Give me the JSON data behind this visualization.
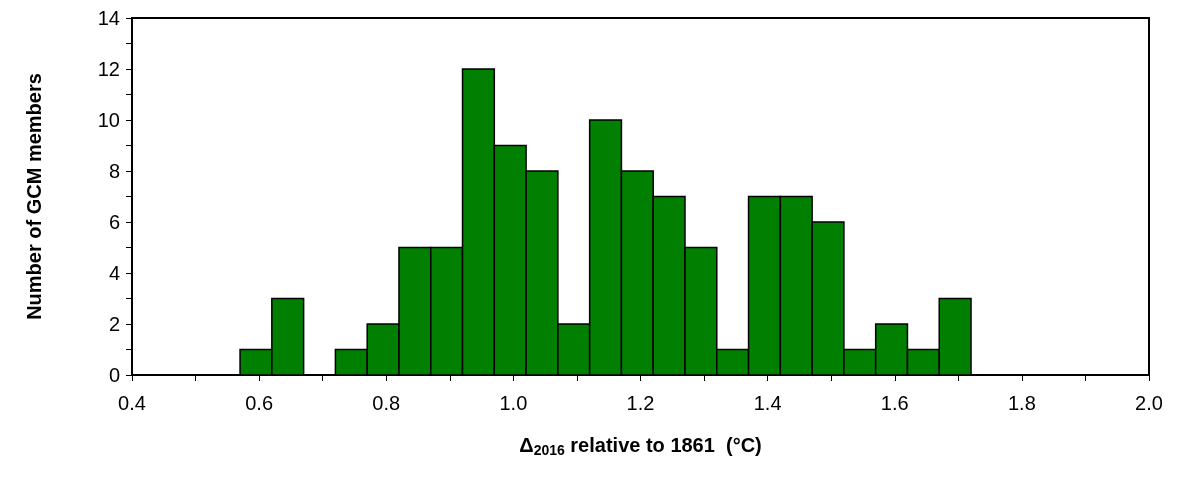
{
  "chart_data": {
    "type": "histogram",
    "xlabel": "Δ$_{2016}$ relative to 1861  (°C)",
    "ylabel": "Number of GCM members",
    "color": "#007f00",
    "bins": [
      0.57,
      0.62,
      0.67,
      0.72,
      0.77,
      0.82,
      0.87,
      0.92,
      0.97,
      1.02,
      1.07,
      1.12,
      1.17,
      1.22,
      1.27,
      1.32,
      1.37,
      1.42,
      1.47,
      1.52,
      1.57,
      1.62,
      1.67,
      1.72
    ],
    "values": [
      1,
      3,
      0,
      1,
      2,
      5,
      5,
      12,
      9,
      8,
      2,
      10,
      8,
      7,
      5,
      1,
      7,
      7,
      6,
      1,
      2,
      1,
      3
    ],
    "xlim": [
      0.4,
      2.0
    ],
    "xticks": [
      {
        "value": 0.4,
        "label": "0.4"
      },
      {
        "value": 0.5,
        "label": null
      },
      {
        "value": 0.6,
        "label": "0.6"
      },
      {
        "value": 0.7,
        "label": null
      },
      {
        "value": 0.8,
        "label": "0.8"
      },
      {
        "value": 0.9,
        "label": null
      },
      {
        "value": 1.0,
        "label": "1.0"
      },
      {
        "value": 1.1,
        "label": null
      },
      {
        "value": 1.2,
        "label": "1.2"
      },
      {
        "value": 1.3,
        "label": null
      },
      {
        "value": 1.4,
        "label": "1.4"
      },
      {
        "value": 1.5,
        "label": null
      },
      {
        "value": 1.6,
        "label": "1.6"
      },
      {
        "value": 1.7,
        "label": null
      },
      {
        "value": 1.8,
        "label": "1.8"
      },
      {
        "value": 1.9,
        "label": null
      },
      {
        "value": 2.0,
        "label": "2.0"
      }
    ],
    "ylim": [
      0,
      14
    ],
    "yticks": [
      0,
      {
        "value": 1,
        "label": null
      },
      2,
      {
        "value": 3,
        "label": null
      },
      4,
      {
        "value": 5,
        "label": null
      },
      6,
      {
        "value": 7,
        "label": null
      },
      8,
      {
        "value": 9,
        "label": null
      },
      10,
      {
        "value": 11,
        "label": null
      },
      12,
      {
        "value": 13,
        "label": null
      },
      14
    ],
    "grid": false
  }
}
